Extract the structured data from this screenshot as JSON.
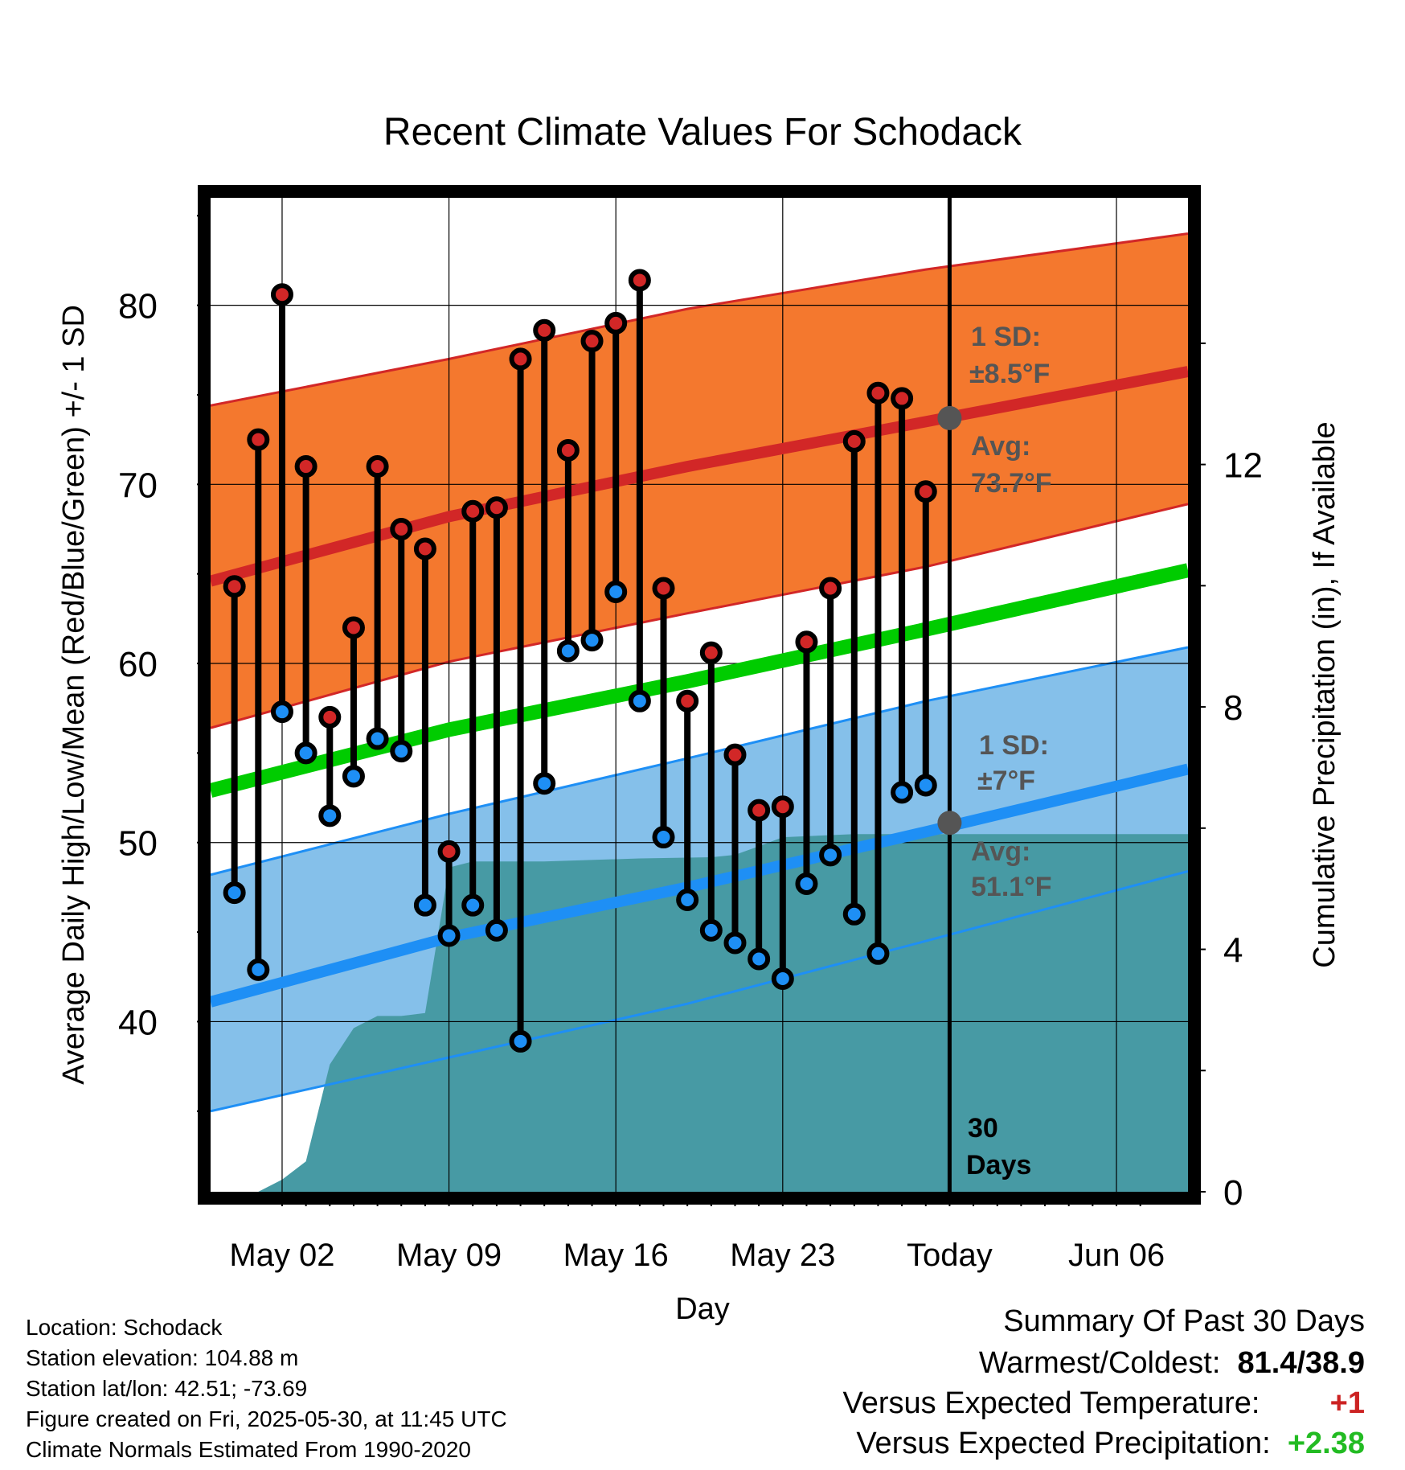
{
  "chart_data": {
    "type": "line",
    "title": "Recent Climate Values For Schodack",
    "xlabel": "Day",
    "ylabel": "Average Daily High/Low/Mean (Red/Blue/Green) +/- 1 SD",
    "y2label": "Cumulative Precipitation (in), If Available",
    "xlim": [
      "2025-04-29",
      "2025-06-09"
    ],
    "ylim": [
      30.5,
      86.0
    ],
    "y2lim": [
      0,
      16.4
    ],
    "x_ticks": [
      {
        "date": "2025-05-02",
        "label": "May 02"
      },
      {
        "date": "2025-05-09",
        "label": "May 09"
      },
      {
        "date": "2025-05-16",
        "label": "May 16"
      },
      {
        "date": "2025-05-23",
        "label": "May 23"
      },
      {
        "date": "2025-05-30",
        "label": "Today"
      },
      {
        "date": "2025-06-06",
        "label": "Jun 06"
      }
    ],
    "y_ticks": [
      40,
      50,
      60,
      70,
      80
    ],
    "y2_ticks": [
      0,
      4,
      8,
      12
    ],
    "grid": true,
    "colors": {
      "high": "#d22727",
      "low": "#1e8ff5",
      "mean": "#00cc00",
      "high_band": "#f4782e",
      "low_band": "#85c0ea",
      "precip": "#479aa4",
      "avg_marker": "#555555",
      "annotation": "#555555",
      "positive": "#22bb22",
      "negative": "#cc2222"
    },
    "dates": [
      "2025-04-30",
      "2025-05-01",
      "2025-05-02",
      "2025-05-03",
      "2025-05-04",
      "2025-05-05",
      "2025-05-06",
      "2025-05-07",
      "2025-05-08",
      "2025-05-09",
      "2025-05-10",
      "2025-05-11",
      "2025-05-12",
      "2025-05-13",
      "2025-05-14",
      "2025-05-15",
      "2025-05-16",
      "2025-05-17",
      "2025-05-18",
      "2025-05-19",
      "2025-05-20",
      "2025-05-21",
      "2025-05-22",
      "2025-05-23",
      "2025-05-24",
      "2025-05-25",
      "2025-05-26",
      "2025-05-27",
      "2025-05-28",
      "2025-05-29"
    ],
    "series": [
      {
        "name": "High",
        "values": [
          64.3,
          72.5,
          80.6,
          71.0,
          57.0,
          62.0,
          71.0,
          67.5,
          66.4,
          49.5,
          68.5,
          68.7,
          77.0,
          78.6,
          71.9,
          78.0,
          79.0,
          81.4,
          64.2,
          57.9,
          60.6,
          54.9,
          51.8,
          52.0,
          61.2,
          64.2,
          72.4,
          75.1,
          74.8,
          69.6
        ]
      },
      {
        "name": "Low",
        "values": [
          47.2,
          42.9,
          57.3,
          55.0,
          51.5,
          53.7,
          55.8,
          55.1,
          46.5,
          44.8,
          46.5,
          45.1,
          38.9,
          53.3,
          60.7,
          61.3,
          64.0,
          57.9,
          50.3,
          46.8,
          45.1,
          44.4,
          43.5,
          42.4,
          47.7,
          49.3,
          46.0,
          43.8,
          52.8,
          53.2
        ]
      }
    ],
    "normals": {
      "dates": [
        "2025-04-29",
        "2025-05-09",
        "2025-05-19",
        "2025-05-29",
        "2025-06-09"
      ],
      "high_avg": [
        64.6,
        68.2,
        71.0,
        73.5,
        76.3
      ],
      "high_upper": [
        74.4,
        77.0,
        79.8,
        82.0,
        84.0
      ],
      "high_lower": [
        56.4,
        60.1,
        62.8,
        65.4,
        68.9
      ],
      "mean_avg": [
        52.9,
        56.3,
        59.0,
        61.9,
        65.2
      ],
      "low_avg": [
        41.1,
        44.7,
        47.5,
        50.6,
        54.1
      ],
      "low_upper": [
        48.2,
        51.6,
        54.7,
        57.9,
        60.9
      ],
      "low_lower": [
        35.0,
        38.0,
        41.0,
        44.5,
        48.4
      ]
    },
    "precip_cumulative": {
      "dates": [
        "2025-05-01",
        "2025-05-02",
        "2025-05-03",
        "2025-05-04",
        "2025-05-05",
        "2025-05-06",
        "2025-05-07",
        "2025-05-08",
        "2025-05-09",
        "2025-05-10",
        "2025-05-13",
        "2025-05-17",
        "2025-05-20",
        "2025-05-21",
        "2025-05-22",
        "2025-05-23",
        "2025-05-26",
        "2025-06-09"
      ],
      "values": [
        0.0,
        0.2,
        0.5,
        2.1,
        2.7,
        2.9,
        2.9,
        2.95,
        5.35,
        5.45,
        5.45,
        5.5,
        5.52,
        5.56,
        5.7,
        5.85,
        5.9,
        5.9
      ]
    },
    "annotations": {
      "high_sd_label": "1 SD:",
      "high_sd_value": "±8.5°F",
      "high_avg_label": "Avg:",
      "high_avg_value": "73.7°F",
      "high_avg": 73.7,
      "low_sd_label": "1 SD:",
      "low_sd_value": "±7°F",
      "low_avg_label": "Avg:",
      "low_avg_value": "51.1°F",
      "low_avg": 51.1,
      "days_count": "30",
      "days_label": "Days"
    }
  },
  "footer": {
    "location": "Location: Schodack",
    "elevation": "Station elevation: 104.88 m",
    "latlon": "Station lat/lon: 42.51; -73.69",
    "created": "Figure created on Fri, 2025-05-30, at 11:45 UTC",
    "normals": "Climate Normals Estimated From 1990-2020"
  },
  "summary": {
    "title": "Summary Of Past 30 Days",
    "warmest_label": "Warmest/Coldest:",
    "warmest_value": "81.4/38.9",
    "temp_label": "Versus Expected Temperature:",
    "temp_value": "+1",
    "precip_label": "Versus Expected Precipitation:",
    "precip_value": "+2.38"
  }
}
